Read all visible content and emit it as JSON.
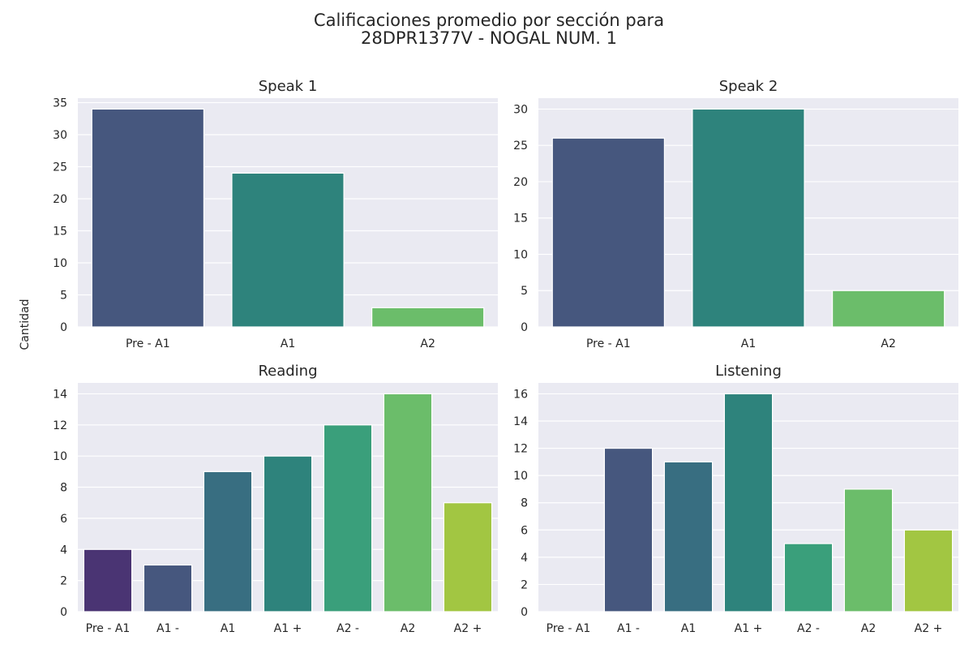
{
  "figure": {
    "title_line1": "Calificaciones promedio por sección para",
    "title_line2": "28DPR1377V - NOGAL NUM. 1",
    "ylabel": "Cantidad"
  },
  "colors": {
    "panel_background": "#eaeaf2",
    "grid": "#ffffff",
    "palette3": [
      "#46577e",
      "#2e837c",
      "#6bbd6a"
    ],
    "palette7": [
      "#4a3473",
      "#46577e",
      "#386e81",
      "#2e837c",
      "#3a9f7b",
      "#6bbd6a",
      "#a2c642"
    ]
  },
  "chart_data": [
    {
      "type": "bar",
      "title": "Speak 1",
      "categories": [
        "Pre - A1",
        "A1",
        "A2"
      ],
      "values": [
        34,
        24,
        3
      ],
      "yticks": [
        0,
        5,
        10,
        15,
        20,
        25,
        30,
        35
      ],
      "ylim": [
        0,
        35.7
      ],
      "grid": true
    },
    {
      "type": "bar",
      "title": "Speak 2",
      "categories": [
        "Pre - A1",
        "A1",
        "A2"
      ],
      "values": [
        26,
        30,
        5
      ],
      "yticks": [
        0,
        5,
        10,
        15,
        20,
        25,
        30
      ],
      "ylim": [
        0,
        31.5
      ],
      "grid": true
    },
    {
      "type": "bar",
      "title": "Reading",
      "categories": [
        "Pre - A1",
        "A1 -",
        "A1",
        "A1 +",
        "A2 -",
        "A2",
        "A2 +"
      ],
      "values": [
        4,
        3,
        9,
        10,
        12,
        14,
        7
      ],
      "yticks": [
        0,
        2,
        4,
        6,
        8,
        10,
        12,
        14
      ],
      "ylim": [
        0,
        14.7
      ],
      "grid": true
    },
    {
      "type": "bar",
      "title": "Listening",
      "categories": [
        "Pre - A1",
        "A1 -",
        "A1",
        "A1 +",
        "A2 -",
        "A2",
        "A2 +"
      ],
      "values": [
        0,
        12,
        11,
        16,
        5,
        9,
        6
      ],
      "yticks": [
        0,
        2,
        4,
        6,
        8,
        10,
        12,
        14,
        16
      ],
      "ylim": [
        0,
        16.8
      ],
      "grid": true
    }
  ]
}
